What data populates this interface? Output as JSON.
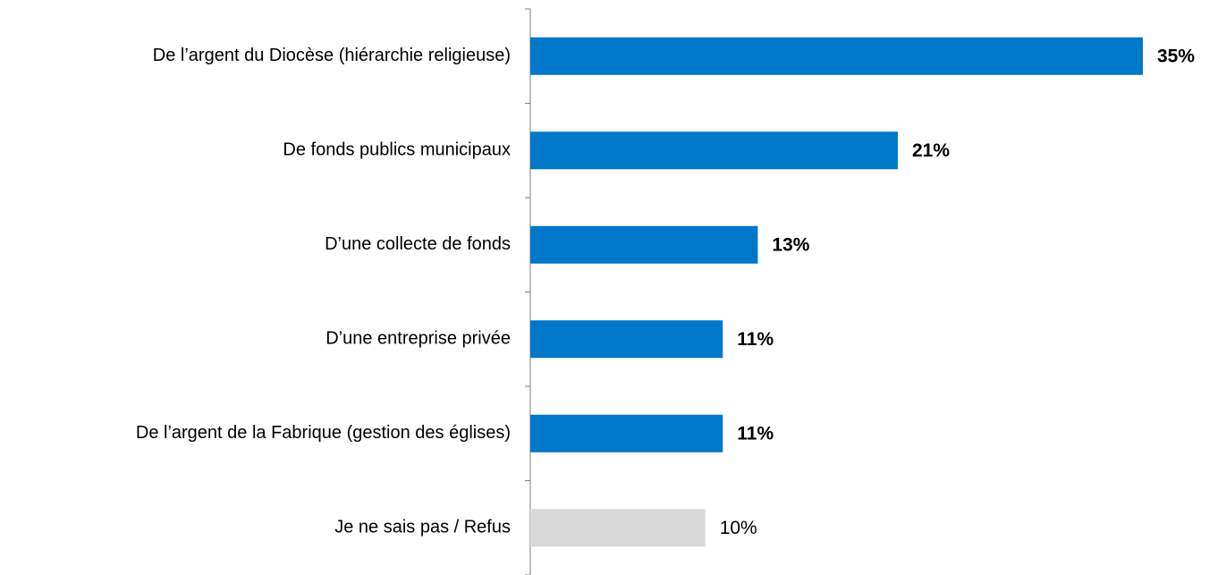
{
  "chart_data": {
    "type": "barh",
    "categories": [
      "De l’argent du Diocèse (hiérarchie religieuse)",
      "De fonds publics municipaux",
      "D’une collecte de fonds",
      "D’une entreprise privée",
      "De l’argent de la Fabrique (gestion des églises)",
      "Je ne sais pas / Refus"
    ],
    "values": [
      35,
      21,
      13,
      11,
      11,
      10
    ],
    "value_labels": [
      "35%",
      "21%",
      "13%",
      "11%",
      "11%",
      "10%"
    ],
    "colors": [
      "#0077c8",
      "#0077c8",
      "#0077c8",
      "#0077c8",
      "#0077c8",
      "#d9d9d9"
    ],
    "xlim": [
      0,
      35
    ]
  }
}
